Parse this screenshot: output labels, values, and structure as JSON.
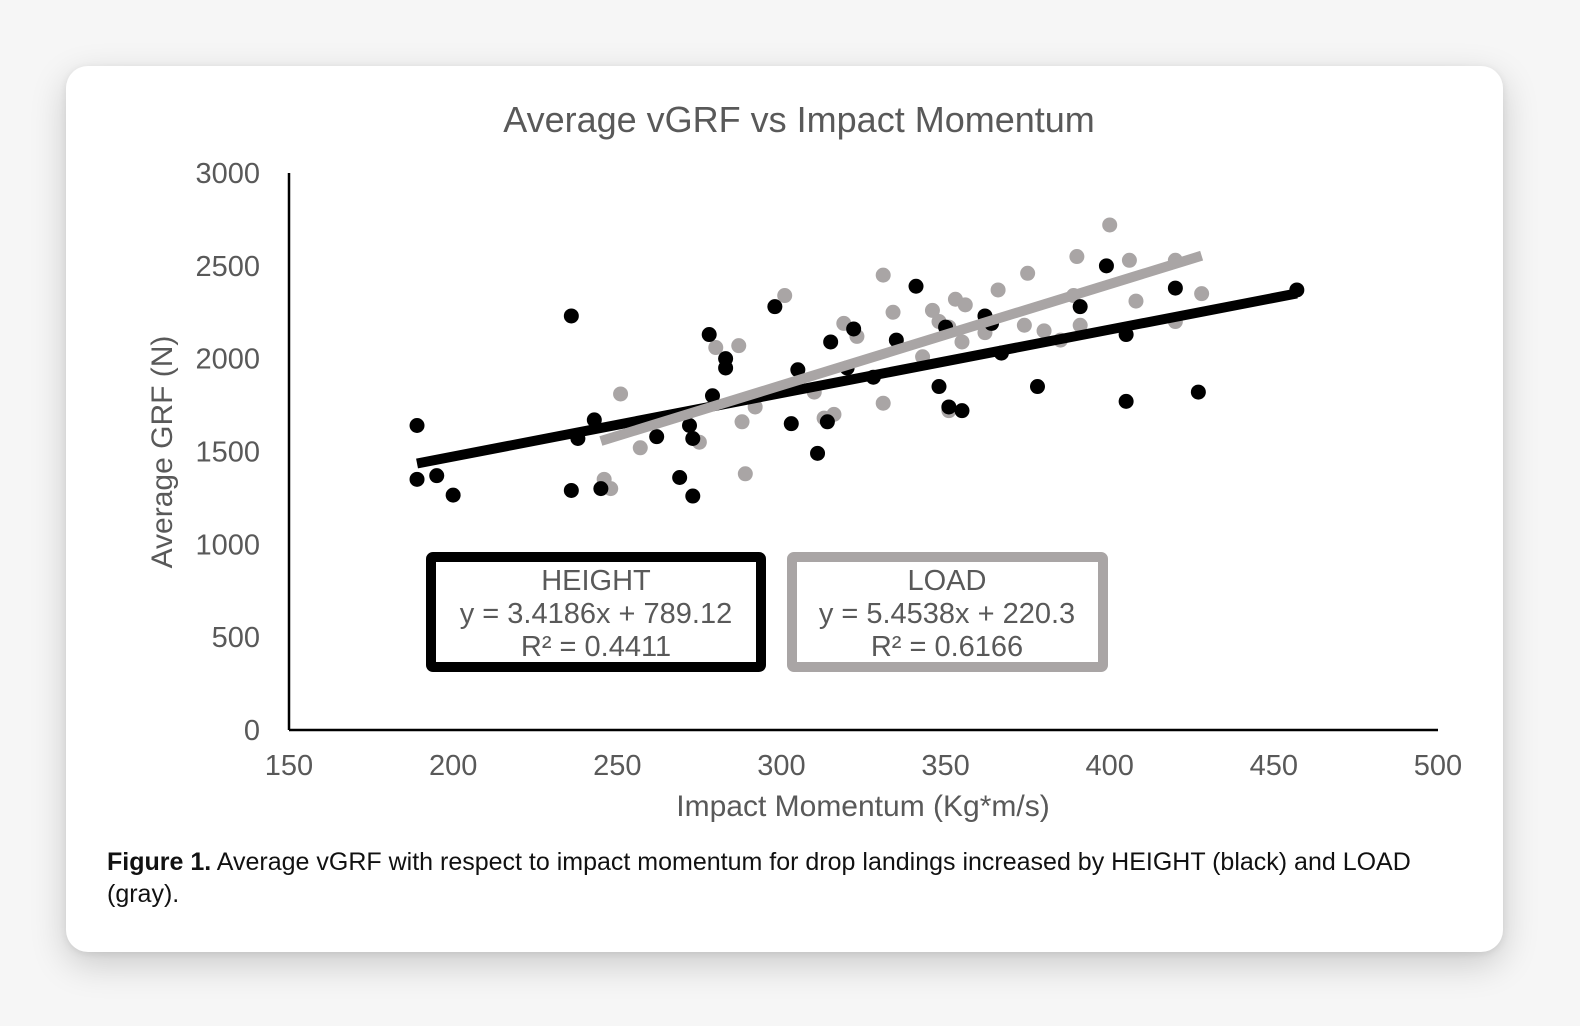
{
  "figure": {
    "caption_label": "Figure 1.",
    "caption_text": "Average vGRF with respect to impact momentum for drop landings increased by HEIGHT (black) and LOAD (gray)."
  },
  "chart_data": {
    "type": "scatter",
    "title": "Average vGRF vs Impact Momentum",
    "xlabel": "Impact Momentum (Kg*m/s)",
    "ylabel": "Average GRF (N)",
    "xlim": [
      150,
      500
    ],
    "ylim": [
      0,
      3000
    ],
    "xticks": [
      150,
      200,
      250,
      300,
      350,
      400,
      450,
      500
    ],
    "yticks": [
      0,
      500,
      1000,
      1500,
      2000,
      2500,
      3000
    ],
    "grid": false,
    "series": [
      {
        "name": "HEIGHT",
        "color": "#000000",
        "trendline": {
          "slope": 3.4186,
          "intercept": 789.12,
          "x_range": [
            189,
            457
          ]
        },
        "equation": "y = 3.4186x + 789.12",
        "r_squared": "R² = 0.4411",
        "points": [
          [
            189,
            1640
          ],
          [
            189,
            1350
          ],
          [
            195,
            1370
          ],
          [
            200,
            1265
          ],
          [
            236,
            2230
          ],
          [
            236,
            1290
          ],
          [
            238,
            1570
          ],
          [
            243,
            1670
          ],
          [
            245,
            1300
          ],
          [
            262,
            1580
          ],
          [
            269,
            1360
          ],
          [
            272,
            1640
          ],
          [
            273,
            1570
          ],
          [
            273,
            1260
          ],
          [
            278,
            2130
          ],
          [
            279,
            1800
          ],
          [
            283,
            2000
          ],
          [
            283,
            1950
          ],
          [
            298,
            2280
          ],
          [
            303,
            1650
          ],
          [
            305,
            1940
          ],
          [
            311,
            1490
          ],
          [
            314,
            1660
          ],
          [
            315,
            2090
          ],
          [
            320,
            1950
          ],
          [
            322,
            2160
          ],
          [
            328,
            1900
          ],
          [
            335,
            2100
          ],
          [
            341,
            2390
          ],
          [
            348,
            1850
          ],
          [
            350,
            2170
          ],
          [
            351,
            1740
          ],
          [
            355,
            1720
          ],
          [
            362,
            2230
          ],
          [
            364,
            2190
          ],
          [
            367,
            2030
          ],
          [
            378,
            1850
          ],
          [
            391,
            2280
          ],
          [
            399,
            2500
          ],
          [
            405,
            2130
          ],
          [
            405,
            1770
          ],
          [
            420,
            2380
          ],
          [
            427,
            1820
          ],
          [
            457,
            2370
          ]
        ]
      },
      {
        "name": "LOAD",
        "color": "#a9a5a5",
        "trendline": {
          "slope": 5.4538,
          "intercept": 220.3,
          "x_range": [
            245,
            428
          ]
        },
        "equation": "y = 5.4538x + 220.3",
        "r_squared": "R² = 0.6166",
        "points": [
          [
            246,
            1350
          ],
          [
            248,
            1300
          ],
          [
            251,
            1810
          ],
          [
            257,
            1520
          ],
          [
            275,
            1550
          ],
          [
            280,
            2060
          ],
          [
            287,
            2070
          ],
          [
            288,
            1660
          ],
          [
            289,
            1380
          ],
          [
            292,
            1740
          ],
          [
            301,
            2340
          ],
          [
            310,
            1820
          ],
          [
            313,
            1680
          ],
          [
            316,
            1700
          ],
          [
            319,
            2190
          ],
          [
            323,
            2120
          ],
          [
            331,
            2450
          ],
          [
            331,
            1760
          ],
          [
            334,
            2250
          ],
          [
            343,
            2010
          ],
          [
            346,
            2260
          ],
          [
            348,
            2200
          ],
          [
            351,
            2170
          ],
          [
            351,
            1720
          ],
          [
            353,
            2320
          ],
          [
            355,
            2090
          ],
          [
            356,
            2290
          ],
          [
            362,
            2140
          ],
          [
            366,
            2370
          ],
          [
            374,
            2180
          ],
          [
            375,
            2460
          ],
          [
            380,
            2150
          ],
          [
            385,
            2100
          ],
          [
            389,
            2340
          ],
          [
            390,
            2550
          ],
          [
            391,
            2180
          ],
          [
            400,
            2720
          ],
          [
            406,
            2530
          ],
          [
            408,
            2310
          ],
          [
            420,
            2200
          ],
          [
            420,
            2530
          ],
          [
            428,
            2350
          ]
        ]
      }
    ]
  }
}
